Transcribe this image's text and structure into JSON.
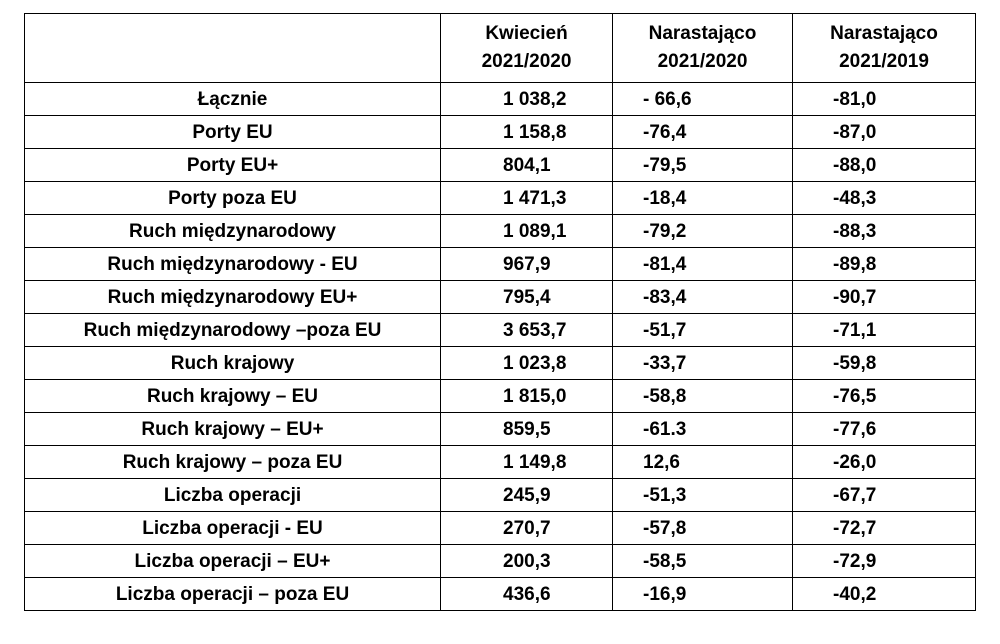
{
  "table": {
    "headers": [
      {
        "line1": "",
        "line2": ""
      },
      {
        "line1": "Kwiecień",
        "line2": "2021/2020"
      },
      {
        "line1": "Narastająco",
        "line2": "2021/2020"
      },
      {
        "line1": "Narastająco",
        "line2": "2021/2019"
      }
    ],
    "rows": [
      {
        "label": "Łącznie",
        "v1": "1 038,2",
        "v2": "- 66,6",
        "v3": "-81,0"
      },
      {
        "label": "Porty EU",
        "v1": "1 158,8",
        "v2": "-76,4",
        "v3": "-87,0"
      },
      {
        "label": "Porty EU+",
        "v1": "804,1",
        "v2": "-79,5",
        "v3": "-88,0"
      },
      {
        "label": "Porty poza EU",
        "v1": "1 471,3",
        "v2": "-18,4",
        "v3": "-48,3"
      },
      {
        "label": "Ruch międzynarodowy",
        "v1": "1 089,1",
        "v2": "-79,2",
        "v3": "-88,3"
      },
      {
        "label": "Ruch międzynarodowy - EU",
        "v1": "967,9",
        "v2": "-81,4",
        "v3": "-89,8"
      },
      {
        "label": "Ruch międzynarodowy EU+",
        "v1": "795,4",
        "v2": "-83,4",
        "v3": "-90,7"
      },
      {
        "label": "Ruch międzynarodowy –poza EU",
        "v1": "3 653,7",
        "v2": "-51,7",
        "v3": "-71,1"
      },
      {
        "label": "Ruch krajowy",
        "v1": "1 023,8",
        "v2": "-33,7",
        "v3": "-59,8"
      },
      {
        "label": "Ruch krajowy – EU",
        "v1": "1 815,0",
        "v2": "-58,8",
        "v3": "-76,5"
      },
      {
        "label": "Ruch krajowy – EU+",
        "v1": "859,5",
        "v2": "-61.3",
        "v3": "-77,6"
      },
      {
        "label": "Ruch krajowy – poza EU",
        "v1": "1 149,8",
        "v2": "12,6",
        "v3": "-26,0"
      },
      {
        "label": "Liczba operacji",
        "v1": "245,9",
        "v2": "-51,3",
        "v3": "-67,7"
      },
      {
        "label": "Liczba operacji - EU",
        "v1": "270,7",
        "v2": "-57,8",
        "v3": "-72,7"
      },
      {
        "label": "Liczba operacji – EU+",
        "v1": "200,3",
        "v2": "-58,5",
        "v3": "-72,9"
      },
      {
        "label": "Liczba operacji – poza EU",
        "v1": "436,6",
        "v2": "-16,9",
        "v3": "-40,2"
      }
    ]
  }
}
